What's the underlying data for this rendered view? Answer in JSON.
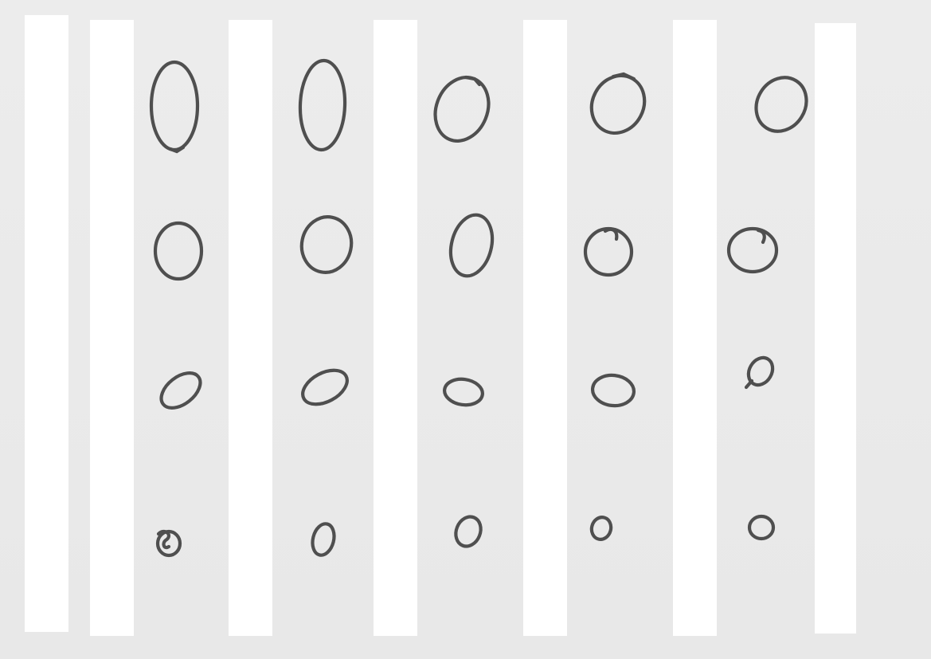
{
  "scene": {
    "paper_color": "#ececec",
    "strip_color": "#ffffff",
    "ink_color": "#4f4f4f",
    "strip_count": 7,
    "rows": [
      {
        "row": "row-1",
        "shapes": [
          "tall-oval",
          "tall-oval",
          "tilted-oval",
          "tilted-oval",
          "tilted-oval"
        ]
      },
      {
        "row": "row-2",
        "shapes": [
          "circle",
          "circle",
          "tilted-oval",
          "circle-with-tail",
          "circle-with-tail"
        ]
      },
      {
        "row": "row-3",
        "shapes": [
          "flat-tilted-oval",
          "flat-tilted-oval",
          "flat-oval",
          "flat-oval",
          "small-tilted-oval"
        ]
      },
      {
        "row": "row-4",
        "shapes": [
          "small-loop",
          "small-oval",
          "small-oval",
          "small-oval",
          "small-oval"
        ]
      }
    ]
  }
}
